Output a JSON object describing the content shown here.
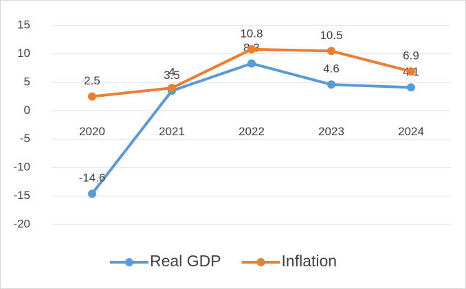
{
  "chart_data": {
    "type": "line",
    "categories": [
      "2020",
      "2021",
      "2022",
      "2023",
      "2024"
    ],
    "series": [
      {
        "name": "Real GDP",
        "color": "#5b9bd5",
        "values": [
          -14.6,
          3.5,
          8.3,
          4.6,
          4.1
        ]
      },
      {
        "name": "Inflation",
        "color": "#ed7d31",
        "values": [
          2.5,
          4,
          10.8,
          10.5,
          6.9
        ]
      }
    ],
    "ylim": [
      -20,
      15
    ],
    "yticks": [
      15,
      10,
      5,
      0,
      -5,
      -10,
      -15,
      -20
    ],
    "grid": true,
    "legend": "bottom"
  }
}
